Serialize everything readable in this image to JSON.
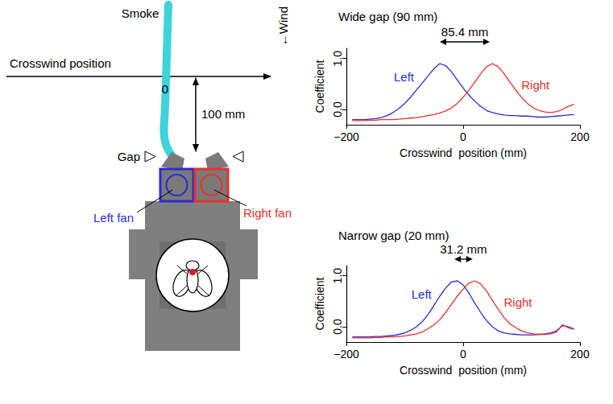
{
  "chart_data": [
    {
      "type": "line",
      "title": "Wide gap (90 mm)",
      "xlabel": "Crosswind  position (mm)",
      "ylabel": "Coefficient",
      "x": [
        -190,
        -180,
        -170,
        -160,
        -150,
        -140,
        -130,
        -120,
        -110,
        -100,
        -90,
        -80,
        -70,
        -60,
        -50,
        -40,
        -30,
        -20,
        -10,
        0,
        10,
        20,
        30,
        40,
        50,
        60,
        70,
        80,
        90,
        100,
        110,
        120,
        130,
        140,
        150,
        160,
        170,
        180,
        190
      ],
      "series": [
        {
          "name": "Left",
          "color": "#2b2bd6",
          "values": [
            -0.2,
            -0.2,
            -0.2,
            -0.19,
            -0.18,
            -0.16,
            -0.12,
            -0.06,
            0.02,
            0.12,
            0.24,
            0.38,
            0.52,
            0.66,
            0.8,
            0.9,
            0.86,
            0.74,
            0.58,
            0.42,
            0.28,
            0.16,
            0.06,
            -0.02,
            -0.06,
            -0.09,
            -0.11,
            -0.12,
            -0.12,
            -0.13,
            -0.13,
            -0.14,
            -0.15,
            -0.15,
            -0.14,
            -0.13,
            -0.12,
            -0.11,
            -0.1
          ]
        },
        {
          "name": "Right",
          "color": "#e8302a",
          "values": [
            -0.22,
            -0.22,
            -0.22,
            -0.21,
            -0.21,
            -0.2,
            -0.2,
            -0.2,
            -0.19,
            -0.18,
            -0.17,
            -0.16,
            -0.14,
            -0.12,
            -0.1,
            -0.07,
            -0.03,
            0.03,
            0.12,
            0.24,
            0.38,
            0.54,
            0.7,
            0.84,
            0.9,
            0.84,
            0.7,
            0.54,
            0.38,
            0.24,
            0.12,
            0.03,
            -0.02,
            -0.05,
            -0.06,
            -0.04,
            0.0,
            0.06,
            0.1
          ]
        }
      ],
      "xlim": [
        -200,
        200
      ],
      "xticks": [
        {
          "value": -200,
          "label": "−200"
        },
        0,
        200
      ],
      "ylim": [
        -0.3,
        1.2
      ],
      "yticks": [
        {
          "value": 0,
          "label": "0.0"
        },
        {
          "value": 1,
          "label": "1.0"
        }
      ],
      "grid": false,
      "annotation": {
        "text": "85.4 mm",
        "from": -40,
        "to": 45.4
      }
    },
    {
      "type": "line",
      "title": "Narrow gap (20 mm)",
      "xlabel": "Crosswind  position (mm)",
      "ylabel": "Coefficient",
      "x": [
        -190,
        -180,
        -170,
        -160,
        -150,
        -140,
        -130,
        -120,
        -110,
        -100,
        -90,
        -80,
        -70,
        -60,
        -50,
        -40,
        -30,
        -20,
        -10,
        0,
        10,
        20,
        30,
        40,
        50,
        60,
        70,
        80,
        90,
        100,
        110,
        120,
        130,
        140,
        150,
        160,
        170,
        180,
        190
      ],
      "series": [
        {
          "name": "Left",
          "color": "#2b2bd6",
          "values": [
            -0.2,
            -0.2,
            -0.2,
            -0.2,
            -0.19,
            -0.19,
            -0.18,
            -0.17,
            -0.15,
            -0.12,
            -0.07,
            0.0,
            0.1,
            0.24,
            0.42,
            0.6,
            0.76,
            0.88,
            0.9,
            0.82,
            0.66,
            0.46,
            0.28,
            0.12,
            0.0,
            -0.08,
            -0.12,
            -0.14,
            -0.15,
            -0.16,
            -0.16,
            -0.16,
            -0.15,
            -0.14,
            -0.12,
            -0.08,
            0.02,
            0.0,
            -0.04
          ]
        },
        {
          "name": "Right",
          "color": "#e8302a",
          "values": [
            -0.22,
            -0.22,
            -0.22,
            -0.22,
            -0.21,
            -0.21,
            -0.2,
            -0.2,
            -0.19,
            -0.18,
            -0.16,
            -0.14,
            -0.1,
            -0.04,
            0.04,
            0.14,
            0.28,
            0.44,
            0.6,
            0.74,
            0.86,
            0.9,
            0.84,
            0.7,
            0.52,
            0.34,
            0.18,
            0.06,
            -0.02,
            -0.08,
            -0.12,
            -0.14,
            -0.15,
            -0.15,
            -0.14,
            -0.1,
            0.04,
            -0.02,
            -0.05
          ]
        }
      ],
      "xlim": [
        -200,
        200
      ],
      "xticks": [
        {
          "value": -200,
          "label": "−200"
        },
        0,
        200
      ],
      "ylim": [
        -0.3,
        1.2
      ],
      "yticks": [
        {
          "value": 0,
          "label": "0.0"
        },
        {
          "value": 1,
          "label": "1.0"
        }
      ],
      "grid": false,
      "annotation": {
        "text": "31.2 mm",
        "from": -15,
        "to": 16.2
      }
    }
  ],
  "diagram": {
    "smoke_label": "Smoke",
    "wind_label": "←Wind",
    "axis_label": "Crosswind position",
    "axis_zero": 0,
    "distance_label": "100 mm",
    "gap_label": "Gap",
    "left_fan_label": "Left fan",
    "right_fan_label": "Right fan"
  }
}
